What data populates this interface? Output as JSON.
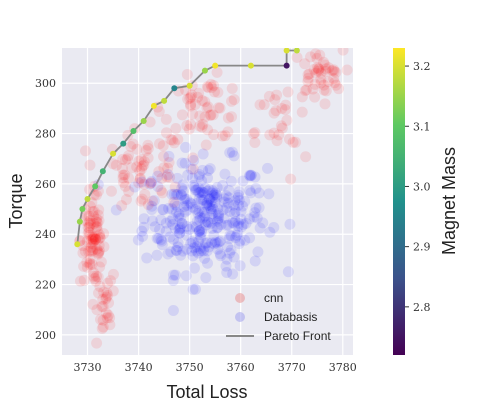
{
  "chart_data": {
    "type": "scatter",
    "xlabel": "Total Loss",
    "ylabel": "Torque",
    "xlim": [
      3725,
      3782
    ],
    "ylim": [
      192,
      314
    ],
    "xticks": [
      3730,
      3740,
      3750,
      3760,
      3770,
      3780
    ],
    "yticks": [
      200,
      220,
      240,
      260,
      280,
      300
    ],
    "grid": true,
    "legend_position": "lower-right",
    "legend": [
      {
        "label": "cnn",
        "color": "#e88a8a"
      },
      {
        "label": "Databasis",
        "color": "#9a9aee"
      },
      {
        "label": "Pareto Front",
        "color": "#888888"
      }
    ],
    "colorbar": {
      "label": "Magnet Mass",
      "range": [
        2.72,
        3.23
      ],
      "ticks": [
        "2.8",
        "2.9",
        "3.0",
        "3.1",
        "3.2"
      ],
      "tick_values": [
        2.8,
        2.9,
        3.0,
        3.1,
        3.2
      ],
      "colormap": "viridis"
    },
    "series": [
      {
        "name": "cnn",
        "color": "#ff0000",
        "clusters": [
          {
            "cx": 3731,
            "cy": 238,
            "sx": 1.2,
            "sy": 9,
            "n": 80
          },
          {
            "cx": 3733,
            "cy": 210,
            "sx": 1.3,
            "sy": 9,
            "n": 30
          },
          {
            "cx": 3741,
            "cy": 265,
            "sx": 4,
            "sy": 8,
            "n": 70
          },
          {
            "cx": 3753,
            "cy": 290,
            "sx": 4,
            "sy": 6,
            "n": 60
          },
          {
            "cx": 3775,
            "cy": 303,
            "sx": 2.5,
            "sy": 5,
            "n": 45
          },
          {
            "cx": 3768,
            "cy": 280,
            "sx": 2.5,
            "sy": 10,
            "n": 25
          }
        ]
      },
      {
        "name": "Databasis",
        "color": "#0000ff",
        "clusters": [
          {
            "cx": 3753,
            "cy": 247,
            "sx": 6,
            "sy": 11,
            "n": 300
          }
        ]
      }
    ],
    "pareto_front": [
      {
        "x": 3728.0,
        "y": 236,
        "m": 3.2
      },
      {
        "x": 3728.5,
        "y": 245,
        "m": 3.15
      },
      {
        "x": 3729.0,
        "y": 250,
        "m": 3.12
      },
      {
        "x": 3730.0,
        "y": 254,
        "m": 3.18
      },
      {
        "x": 3731.5,
        "y": 259,
        "m": 3.1
      },
      {
        "x": 3733.0,
        "y": 265,
        "m": 3.05
      },
      {
        "x": 3735.0,
        "y": 272,
        "m": 3.2
      },
      {
        "x": 3737.0,
        "y": 276,
        "m": 3.0
      },
      {
        "x": 3739.0,
        "y": 281,
        "m": 3.08
      },
      {
        "x": 3741.0,
        "y": 285,
        "m": 3.15
      },
      {
        "x": 3743.0,
        "y": 291,
        "m": 3.22
      },
      {
        "x": 3745.0,
        "y": 293,
        "m": 3.18
      },
      {
        "x": 3747.0,
        "y": 298,
        "m": 2.95
      },
      {
        "x": 3750.0,
        "y": 299,
        "m": 3.2
      },
      {
        "x": 3753.0,
        "y": 305,
        "m": 3.15
      },
      {
        "x": 3755.0,
        "y": 307,
        "m": 3.22
      },
      {
        "x": 3762.0,
        "y": 307,
        "m": 3.2
      },
      {
        "x": 3769.0,
        "y": 307,
        "m": 2.75
      },
      {
        "x": 3769.0,
        "y": 313,
        "m": 3.2
      },
      {
        "x": 3771.0,
        "y": 313,
        "m": 3.18
      }
    ]
  }
}
